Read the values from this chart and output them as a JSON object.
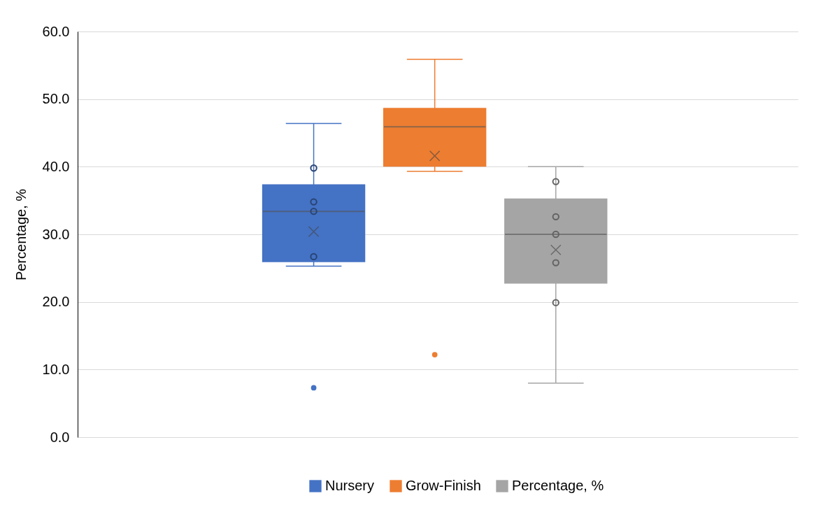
{
  "chart_data": {
    "type": "box",
    "categories": [
      null
    ],
    "ylabel": "Percentage, %",
    "ylim": [
      0,
      60
    ],
    "yticks": [
      {
        "value": 0,
        "label": "0.0"
      },
      {
        "value": 10,
        "label": "10.0"
      },
      {
        "value": 20,
        "label": "20.0"
      },
      {
        "value": 30,
        "label": "30.0"
      },
      {
        "value": 40,
        "label": "40.0"
      },
      {
        "value": 50,
        "label": "50.0"
      },
      {
        "value": 60,
        "label": "60.0"
      }
    ],
    "grid": "y",
    "legend": "bottom",
    "series": [
      {
        "name": "Nursery",
        "color": "#4472c4",
        "boxes": [
          {
            "low": 25.3,
            "q1": 26.0,
            "median": 33.4,
            "q3": 37.3,
            "high": 46.4,
            "mean": 30.4,
            "outliers": [
              7.3
            ]
          }
        ]
      },
      {
        "name": "Grow-Finish",
        "color": "#ed7d31",
        "boxes": [
          {
            "low": 39.3,
            "q1": 40.1,
            "median": 45.9,
            "q3": 48.6,
            "high": 55.9,
            "mean": 41.6,
            "outliers": [
              12.2
            ]
          }
        ]
      },
      {
        "name": "Percentage, %",
        "color": "#a5a5a5",
        "boxes": [
          {
            "low": 8.0,
            "q1": 22.8,
            "median": 30.0,
            "q3": 35.2,
            "high": 40.0,
            "mean": 27.7
          }
        ]
      },
      {
        "type": "scatter",
        "color": "#284475",
        "marker": "circle",
        "x": [
          null,
          null,
          null,
          null
        ],
        "values": [
          39.8,
          34.8,
          33.4,
          26.7
        ]
      },
      {
        "type": "scatter",
        "color": "#636363",
        "marker": "circle",
        "x": [
          null,
          null,
          null,
          null,
          null
        ],
        "values": [
          37.8,
          32.6,
          30.0,
          25.8,
          19.9
        ]
      }
    ]
  }
}
